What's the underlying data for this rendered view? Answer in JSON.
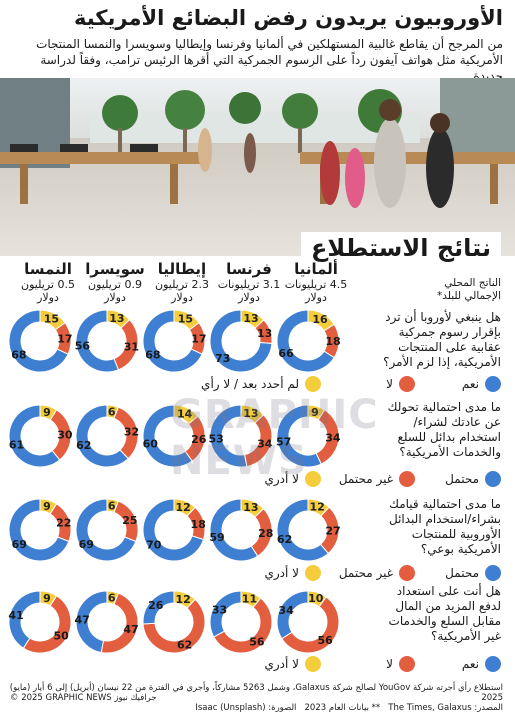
{
  "header": {
    "title": "الأوروبيون يريدون رفض البضائع الأمريكية",
    "subtitle": "من المرجح أن يقاطع غالبية المستهلكين في ألمانيا وفرنسا وإيطاليا وسويسرا والنمسا المنتجات الأمريكية مثل هواتف آيفون رداً على الرسوم الجمركية التي أقرها الرئيس ترامب، وفقاً لدراسة جديدة"
  },
  "results_title": "نتائج الاستطلاع",
  "gdp_label": "الناتج المحلي الإجمالي للبلد*",
  "countries": [
    {
      "name": "النمسا",
      "gdp": "0.5 تريليون دولار"
    },
    {
      "name": "سويسرا",
      "gdp": "0.9 تريليون دولار"
    },
    {
      "name": "إيطاليا",
      "gdp": "2.3 تريليون دولار"
    },
    {
      "name": "فرنسا",
      "gdp": "3.1 تريليونات دولار"
    },
    {
      "name": "ألمانيا",
      "gdp": "4.5 تريليونات دولار"
    }
  ],
  "colors": {
    "blue": "#3f7fd1",
    "red": "#e35d3f",
    "yellow": "#f4cc3c",
    "ring_bg": "#ffffff"
  },
  "questions": [
    {
      "text": "هل ينبغي لأوروبا أن ترد بإقرار رسوم جمركية عقابية على المنتجات الأمريكية، إذا لزم الأمر؟",
      "legend": [
        "نعم",
        "لا",
        "لم أحدد بعد / لا رأي"
      ]
    },
    {
      "text": "ما مدى احتمالية تحولك عن عادتك لشراء/استخدام بدائل للسلع والخدمات الأمريكية؟",
      "legend": [
        "محتمل",
        "غير محتمل",
        "لا أدري"
      ]
    },
    {
      "text": "ما مدى احتمالية قيامك بشراء/استخدام البدائل الأوروبية للمنتجات الأمريكية بوعي؟",
      "legend": [
        "محتمل",
        "غير محتمل",
        "لا أدري"
      ]
    },
    {
      "text": "هل أنت على استعداد لدفع المزيد من المال مقابل السلع والخدمات غير الأمريكية؟",
      "legend": [
        "نعم",
        "لا",
        "لا أدري"
      ]
    }
  ],
  "chart_data": {
    "type": "pie",
    "countries": [
      "النمسا",
      "سويسرا",
      "إيطاليا",
      "فرنسا",
      "ألمانيا"
    ],
    "series": [
      {
        "question_index": 0,
        "values": [
          [
            68,
            17,
            15
          ],
          [
            56,
            31,
            13
          ],
          [
            68,
            17,
            15
          ],
          [
            73,
            13,
            13
          ],
          [
            66,
            18,
            16
          ]
        ]
      },
      {
        "question_index": 1,
        "values": [
          [
            61,
            30,
            9
          ],
          [
            62,
            32,
            6
          ],
          [
            60,
            26,
            14
          ],
          [
            53,
            34,
            13
          ],
          [
            57,
            34,
            9
          ]
        ]
      },
      {
        "question_index": 2,
        "values": [
          [
            69,
            22,
            9
          ],
          [
            69,
            25,
            6
          ],
          [
            70,
            18,
            12
          ],
          [
            59,
            28,
            13
          ],
          [
            62,
            27,
            12
          ]
        ]
      },
      {
        "question_index": 3,
        "values": [
          [
            41,
            50,
            9
          ],
          [
            47,
            47,
            6
          ],
          [
            26,
            62,
            12
          ],
          [
            33,
            56,
            11
          ],
          [
            34,
            56,
            10
          ]
        ]
      }
    ]
  },
  "footer": {
    "source_line1": "استطلاع رأي أجرته شركة YouGov لصالح شركة Galaxus، وشمل 5263 مشاركاً، وأجري في الفترة من 22 نيسان (أبريل) إلى 6 أيار (مايو) 2025",
    "source_line2": "المصدر: The Times, Galaxus",
    "note": "** بيانات العام 2023",
    "photo_credit": "الصورة: Isaac (Unsplash)",
    "copyright": "© 2025 GRAPHIC NEWS جرافيك نيوز"
  },
  "watermark": "GRAPHIC NEWS"
}
